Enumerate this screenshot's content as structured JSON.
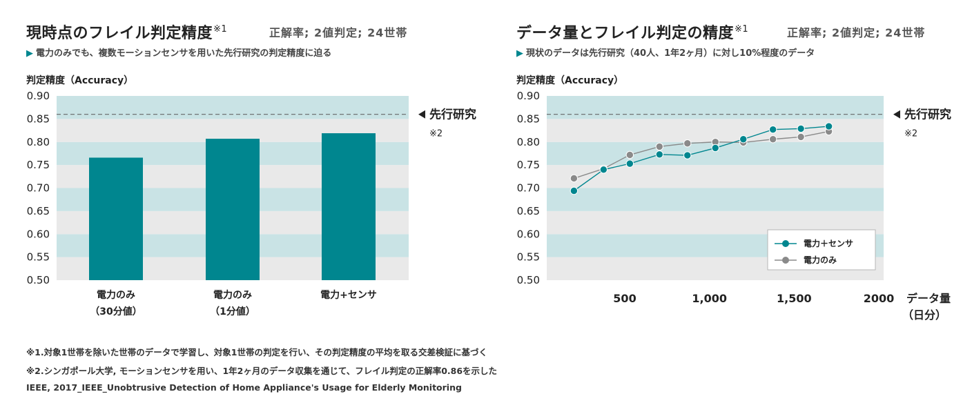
{
  "left": {
    "title": "現時点のフレイル判定精度",
    "title_note": "※1",
    "meta": "正解率; 2値判定; 24世帯",
    "subtitle": "電力のみでも、複数モーションセンサを用いた先行研究の判定精度に迫る",
    "ylabel": "判定精度（Accuracy）",
    "reference_label": "先行研究",
    "reference_note": "※2"
  },
  "right": {
    "title": "データ量とフレイル判定の精度",
    "title_note": "※1",
    "meta": "正解率; 2値判定; 24世帯",
    "subtitle": "現状のデータは先行研究（40人、1年2ヶ月）に対し10%程度のデータ",
    "ylabel": "判定精度（Accuracy）",
    "xlabel_line1": "データ量",
    "xlabel_line2": "（日分）",
    "reference_label": "先行研究",
    "reference_note": "※2"
  },
  "colors": {
    "teal": "#00868f",
    "gray": "#8a8a8a",
    "band_light": "#c9e3e5",
    "band_gray": "#e9e9e9",
    "reference_line": "#666666"
  },
  "chart_data": [
    {
      "type": "bar",
      "title": "現時点のフレイル判定精度",
      "ylabel": "判定精度（Accuracy）",
      "categories": [
        {
          "line1": "電力のみ",
          "line2": "（30分値）"
        },
        {
          "line1": "電力のみ",
          "line2": "（1分値）"
        },
        {
          "line1": "電力+センサ",
          "line2": ""
        }
      ],
      "values": [
        0.766,
        0.807,
        0.819
      ],
      "ylim": [
        0.5,
        0.9
      ],
      "yticks": [
        "0.90",
        "0.85",
        "0.80",
        "0.75",
        "0.70",
        "0.65",
        "0.60",
        "0.55",
        "0.50"
      ],
      "reference_value": 0.86,
      "color": "#00868f",
      "banded_background": true
    },
    {
      "type": "line",
      "title": "データ量とフレイル判定の精度",
      "ylabel": "判定精度（Accuracy）",
      "xlabel": "データ量（日分）",
      "xlim": [
        0,
        2000
      ],
      "xticks": [
        {
          "value": 500,
          "label": "500"
        },
        {
          "value": 1000,
          "label": "1,000"
        },
        {
          "value": 1500,
          "label": "1,500"
        },
        {
          "value": 2000,
          "label": "2000"
        }
      ],
      "ylim": [
        0.5,
        0.9
      ],
      "yticks": [
        "0.90",
        "0.85",
        "0.80",
        "0.75",
        "0.70",
        "0.65",
        "0.60",
        "0.55",
        "0.50"
      ],
      "reference_value": 0.86,
      "series": [
        {
          "name": "電力＋センサ",
          "color": "#00868f",
          "x": [
            200,
            375,
            530,
            705,
            870,
            1035,
            1200,
            1375,
            1540,
            1705
          ],
          "y": [
            0.694,
            0.74,
            0.753,
            0.773,
            0.771,
            0.787,
            0.806,
            0.827,
            0.829,
            0.834
          ]
        },
        {
          "name": "電力のみ",
          "color": "#8a8a8a",
          "x": [
            200,
            375,
            530,
            705,
            870,
            1035,
            1200,
            1375,
            1540,
            1705
          ],
          "y": [
            0.721,
            0.742,
            0.772,
            0.79,
            0.797,
            0.8,
            0.799,
            0.806,
            0.811,
            0.823
          ]
        }
      ],
      "legend_position": "bottom-right",
      "banded_background": true
    }
  ],
  "footnotes": [
    "※1.対象1世帯を除いた世帯のデータで学習し、対象1世帯の判定を行い、その判定精度の平均を取る交差検証に基づく",
    "※2.シンガポール大学, モーションセンサを用い、1年2ヶ月のデータ収集を通じて、フレイル判定の正解率0.86を示した",
    "IEEE, 2017_IEEE_Unobtrusive Detection of Home Appliance's Usage for Elderly Monitoring"
  ]
}
